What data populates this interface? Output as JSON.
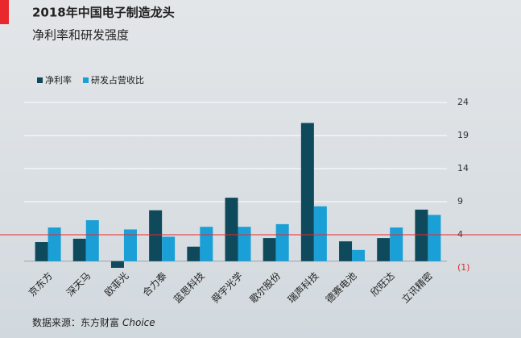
{
  "chart_data": {
    "type": "bar",
    "title": "2018年中国电子制造龙头",
    "subtitle": "净利率和研发强度",
    "categories": [
      "京东方",
      "深天马",
      "欧菲光",
      "合力泰",
      "蓝思科技",
      "舜宇光学",
      "歌尔股份",
      "瑞声科技",
      "德赛电池",
      "欣旺达",
      "立讯精密"
    ],
    "series": [
      {
        "name": "净利率",
        "color": "#0e4a5c",
        "values": [
          2.9,
          3.4,
          -1.0,
          7.7,
          2.2,
          9.6,
          3.5,
          20.9,
          3.0,
          3.5,
          7.8
        ]
      },
      {
        "name": "研发占营收比",
        "color": "#1a9fd6",
        "values": [
          5.1,
          6.2,
          4.8,
          3.7,
          5.2,
          5.2,
          5.6,
          8.3,
          1.7,
          5.1,
          7.0
        ]
      }
    ],
    "ylim": [
      -1,
      24
    ],
    "yticks": [
      24,
      19,
      14,
      9,
      4,
      {
        "value": -1,
        "label": "(1)"
      }
    ],
    "reference_line": 4,
    "grid": true,
    "source": "数据来源：东方财富",
    "source_brand": "Choice"
  }
}
